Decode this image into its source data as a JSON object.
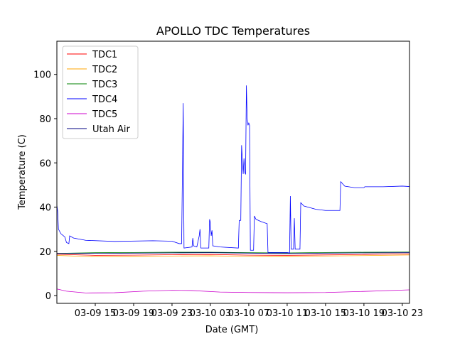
{
  "chart_data": {
    "type": "line",
    "title": "APOLLO TDC Temperatures",
    "xlabel": "Date (GMT)",
    "ylabel": "Temperature (C)",
    "xlim": [
      "2019-03-09 11:00",
      "2019-03-10 23:45"
    ],
    "ylim": [
      -3.5,
      115
    ],
    "x_tick_labels": [
      "03-09 15",
      "03-09 19",
      "03-09 23",
      "03-10 03",
      "03-10 07",
      "03-10 11",
      "03-10 15",
      "03-10 19",
      "03-10 23"
    ],
    "x_tick_times": [
      "2019-03-09 15:00",
      "2019-03-09 19:00",
      "2019-03-09 23:00",
      "2019-03-10 03:00",
      "2019-03-10 07:00",
      "2019-03-10 11:00",
      "2019-03-10 15:00",
      "2019-03-10 19:00",
      "2019-03-10 23:00"
    ],
    "y_ticks": [
      0,
      20,
      40,
      60,
      80,
      100
    ],
    "grid": false,
    "legend_position": "top-left",
    "series": [
      {
        "name": "TDC1",
        "color": "#ff0000",
        "points": [
          [
            "2019-03-09 11:00",
            18.7
          ],
          [
            "2019-03-09 15:00",
            18.2
          ],
          [
            "2019-03-09 19:00",
            18.3
          ],
          [
            "2019-03-09 23:00",
            18.5
          ],
          [
            "2019-03-10 03:00",
            18.6
          ],
          [
            "2019-03-10 07:00",
            18.3
          ],
          [
            "2019-03-10 11:00",
            18.2
          ],
          [
            "2019-03-10 15:00",
            18.4
          ],
          [
            "2019-03-10 19:00",
            18.6
          ],
          [
            "2019-03-10 23:45",
            18.9
          ]
        ]
      },
      {
        "name": "TDC2",
        "color": "#ffa500",
        "points": [
          [
            "2019-03-09 11:00",
            18.2
          ],
          [
            "2019-03-09 15:00",
            17.5
          ],
          [
            "2019-03-09 19:00",
            17.6
          ],
          [
            "2019-03-09 23:00",
            17.9
          ],
          [
            "2019-03-10 03:00",
            18.0
          ],
          [
            "2019-03-10 07:00",
            17.7
          ],
          [
            "2019-03-10 11:00",
            17.6
          ],
          [
            "2019-03-10 15:00",
            17.9
          ],
          [
            "2019-03-10 19:00",
            18.1
          ],
          [
            "2019-03-10 23:45",
            18.4
          ]
        ]
      },
      {
        "name": "TDC3",
        "color": "#008000",
        "points": [
          [
            "2019-03-09 11:00",
            19.1
          ],
          [
            "2019-03-09 15:00",
            19.4
          ],
          [
            "2019-03-09 19:00",
            19.5
          ],
          [
            "2019-03-09 23:00",
            19.6
          ],
          [
            "2019-03-10 03:00",
            19.6
          ],
          [
            "2019-03-10 07:00",
            19.4
          ],
          [
            "2019-03-10 11:00",
            19.3
          ],
          [
            "2019-03-10 15:00",
            19.5
          ],
          [
            "2019-03-10 19:00",
            19.6
          ],
          [
            "2019-03-10 23:45",
            19.7
          ]
        ]
      },
      {
        "name": "TDC4",
        "color": "#0000ff",
        "points": [
          [
            "2019-03-09 11:00",
            41.0
          ],
          [
            "2019-03-09 11:05",
            38.0
          ],
          [
            "2019-03-09 11:10",
            30.0
          ],
          [
            "2019-03-09 11:25",
            28.0
          ],
          [
            "2019-03-09 11:50",
            26.5
          ],
          [
            "2019-03-09 12:00",
            24.0
          ],
          [
            "2019-03-09 12:15",
            23.5
          ],
          [
            "2019-03-09 12:20",
            27.0
          ],
          [
            "2019-03-09 12:45",
            26.0
          ],
          [
            "2019-03-09 14:00",
            25.0
          ],
          [
            "2019-03-09 17:00",
            24.5
          ],
          [
            "2019-03-09 21:00",
            24.8
          ],
          [
            "2019-03-09 23:00",
            24.6
          ],
          [
            "2019-03-09 23:45",
            23.5
          ],
          [
            "2019-03-10 00:00",
            23.5
          ],
          [
            "2019-03-10 00:10",
            87.0
          ],
          [
            "2019-03-10 00:15",
            21.5
          ],
          [
            "2019-03-10 01:05",
            22.0
          ],
          [
            "2019-03-10 01:10",
            26.0
          ],
          [
            "2019-03-10 01:15",
            22.5
          ],
          [
            "2019-03-10 01:35",
            22.0
          ],
          [
            "2019-03-10 01:50",
            27.0
          ],
          [
            "2019-03-10 01:55",
            30.0
          ],
          [
            "2019-03-10 02:00",
            21.5
          ],
          [
            "2019-03-10 02:50",
            21.5
          ],
          [
            "2019-03-10 02:55",
            34.5
          ],
          [
            "2019-03-10 03:00",
            33.0
          ],
          [
            "2019-03-10 03:05",
            27.0
          ],
          [
            "2019-03-10 03:10",
            29.5
          ],
          [
            "2019-03-10 03:15",
            22.5
          ],
          [
            "2019-03-10 04:00",
            22.0
          ],
          [
            "2019-03-10 05:55",
            21.5
          ],
          [
            "2019-03-10 06:00",
            34.0
          ],
          [
            "2019-03-10 06:10",
            34.0
          ],
          [
            "2019-03-10 06:15",
            68.0
          ],
          [
            "2019-03-10 06:20",
            61.0
          ],
          [
            "2019-03-10 06:25",
            55.0
          ],
          [
            "2019-03-10 06:30",
            62.0
          ],
          [
            "2019-03-10 06:35",
            55.5
          ],
          [
            "2019-03-10 06:40",
            55.0
          ],
          [
            "2019-03-10 06:45",
            95.0
          ],
          [
            "2019-03-10 06:50",
            80.0
          ],
          [
            "2019-03-10 06:55",
            77.0
          ],
          [
            "2019-03-10 07:00",
            78.0
          ],
          [
            "2019-03-10 07:05",
            77.0
          ],
          [
            "2019-03-10 07:10",
            20.5
          ],
          [
            "2019-03-10 07:30",
            20.5
          ],
          [
            "2019-03-10 07:35",
            36.0
          ],
          [
            "2019-03-10 07:45",
            34.5
          ],
          [
            "2019-03-10 08:15",
            33.5
          ],
          [
            "2019-03-10 08:55",
            32.5
          ],
          [
            "2019-03-10 09:00",
            19.5
          ],
          [
            "2019-03-10 11:00",
            19.5
          ],
          [
            "2019-03-10 11:15",
            19.3
          ],
          [
            "2019-03-10 11:20",
            45.0
          ],
          [
            "2019-03-10 11:25",
            21.0
          ],
          [
            "2019-03-10 11:40",
            21.0
          ],
          [
            "2019-03-10 11:45",
            35.0
          ],
          [
            "2019-03-10 11:50",
            21.0
          ],
          [
            "2019-03-10 12:20",
            21.0
          ],
          [
            "2019-03-10 12:25",
            42.0
          ],
          [
            "2019-03-10 12:45",
            40.5
          ],
          [
            "2019-03-10 14:00",
            39.0
          ],
          [
            "2019-03-10 15:00",
            38.5
          ],
          [
            "2019-03-10 16:30",
            38.5
          ],
          [
            "2019-03-10 16:35",
            51.5
          ],
          [
            "2019-03-10 17:00",
            49.5
          ],
          [
            "2019-03-10 18:00",
            48.8
          ],
          [
            "2019-03-10 19:00",
            48.8
          ],
          [
            "2019-03-10 19:05",
            49.2
          ],
          [
            "2019-03-10 21:00",
            49.2
          ],
          [
            "2019-03-10 23:00",
            49.5
          ],
          [
            "2019-03-10 23:45",
            49.3
          ]
        ]
      },
      {
        "name": "TDC5",
        "color": "#cc00cc",
        "points": [
          [
            "2019-03-09 11:00",
            3.0
          ],
          [
            "2019-03-09 12:00",
            2.0
          ],
          [
            "2019-03-09 14:00",
            1.2
          ],
          [
            "2019-03-09 17:00",
            1.3
          ],
          [
            "2019-03-09 20:00",
            2.0
          ],
          [
            "2019-03-09 23:00",
            2.4
          ],
          [
            "2019-03-10 01:00",
            2.3
          ],
          [
            "2019-03-10 04:00",
            1.6
          ],
          [
            "2019-03-10 07:00",
            1.4
          ],
          [
            "2019-03-10 11:00",
            1.3
          ],
          [
            "2019-03-10 15:00",
            1.4
          ],
          [
            "2019-03-10 19:00",
            1.9
          ],
          [
            "2019-03-10 23:45",
            2.6
          ]
        ]
      },
      {
        "name": "Utah Air",
        "color": "#000080",
        "points": [
          [
            "2019-03-09 11:00",
            19.0
          ],
          [
            "2019-03-09 15:00",
            19.1
          ],
          [
            "2019-03-09 19:00",
            19.2
          ],
          [
            "2019-03-09 23:00",
            19.3
          ],
          [
            "2019-03-10 03:00",
            19.4
          ],
          [
            "2019-03-10 07:00",
            19.2
          ],
          [
            "2019-03-10 11:00",
            19.0
          ],
          [
            "2019-03-10 15:00",
            19.2
          ],
          [
            "2019-03-10 19:00",
            19.3
          ],
          [
            "2019-03-10 23:45",
            19.4
          ]
        ]
      }
    ]
  }
}
